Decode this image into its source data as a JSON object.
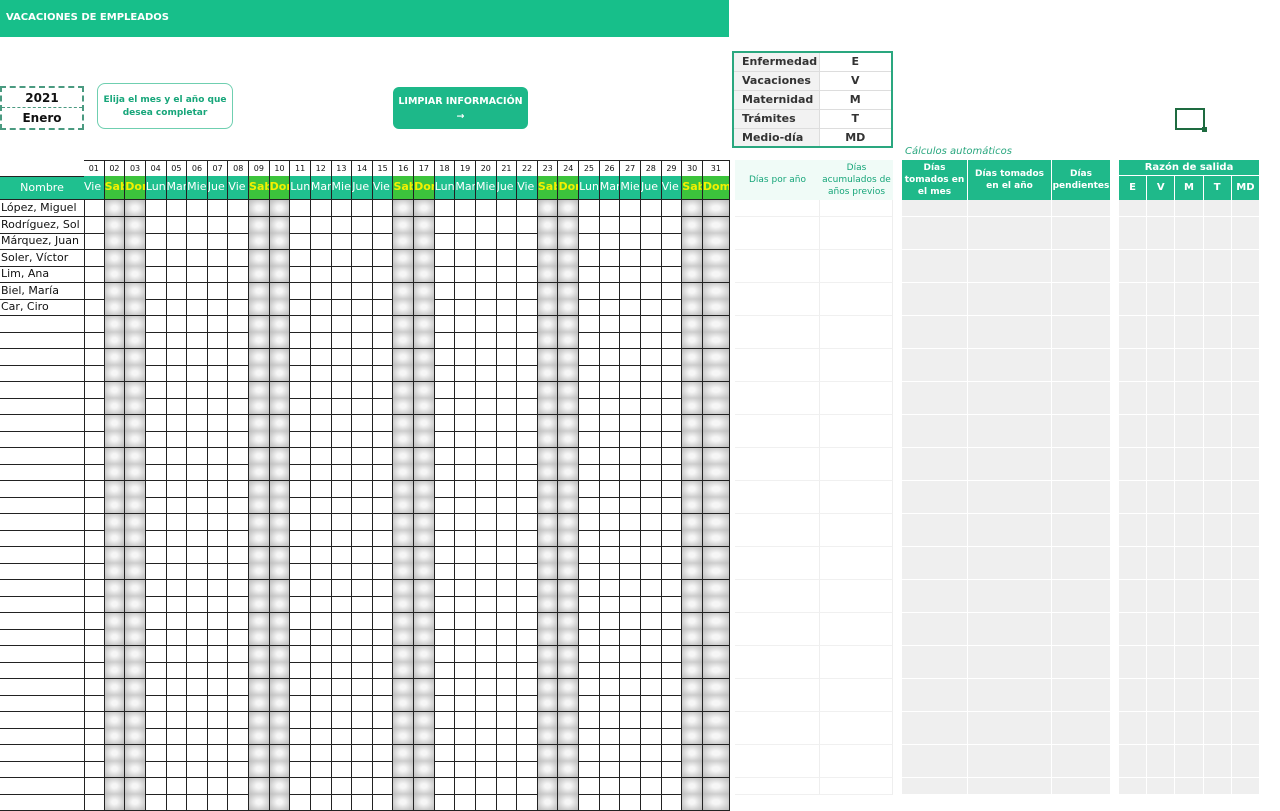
{
  "header": {
    "title": "VACACIONES DE EMPLEADOS"
  },
  "selector": {
    "year": "2021",
    "month": "Enero",
    "hint": "Elija el mes y el año que desea completar"
  },
  "clear_button": {
    "label": "LIMPIAR INFORMACIÓN",
    "arrow": "→"
  },
  "legend": [
    {
      "label": "Enfermedad",
      "code": "E"
    },
    {
      "label": "Vacaciones",
      "code": "V"
    },
    {
      "label": "Maternidad",
      "code": "M"
    },
    {
      "label": "Trámites",
      "code": "T"
    },
    {
      "label": "Medio-día",
      "code": "MD"
    }
  ],
  "calendar": {
    "name_header": "Nombre",
    "days": [
      "01",
      "02",
      "03",
      "04",
      "05",
      "06",
      "07",
      "08",
      "09",
      "10",
      "11",
      "12",
      "13",
      "14",
      "15",
      "16",
      "17",
      "18",
      "19",
      "20",
      "21",
      "22",
      "23",
      "24",
      "25",
      "26",
      "27",
      "28",
      "29",
      "30",
      "31"
    ],
    "weekdays": [
      "Vie",
      "Sab",
      "Dom",
      "Lun",
      "Mar",
      "Mie",
      "Jue",
      "Vie",
      "Sab",
      "Dom",
      "Lun",
      "Mar",
      "Mie",
      "Jue",
      "Vie",
      "Sab",
      "Dom",
      "Lun",
      "Mar",
      "Mie",
      "Jue",
      "Vie",
      "Sab",
      "Dom",
      "Lun",
      "Mar",
      "Mie",
      "Jue",
      "Vie",
      "Sab",
      "Dom"
    ],
    "employees": [
      "López, Miguel",
      "Rodríguez, Sol",
      "Márquez, Juan",
      "Soler, Víctor",
      "Lim, Ana",
      "Biel, María",
      "Car, Ciro"
    ]
  },
  "inputs": {
    "days_per_year": "Días por año",
    "accumulated": "Días acumulados de años previos"
  },
  "auto": {
    "caption": "Cálculos automáticos",
    "month_taken": "Días tomados en el mes",
    "year_taken": "Días tomados en el año",
    "pending": "Días pendientes"
  },
  "reason": {
    "title": "Razón de salida",
    "codes": [
      "E",
      "V",
      "M",
      "T",
      "MD"
    ]
  },
  "colors": {
    "accent": "#1fc08f",
    "weekend_header": "#3cc43c",
    "weekend_text": "#f4f000"
  }
}
